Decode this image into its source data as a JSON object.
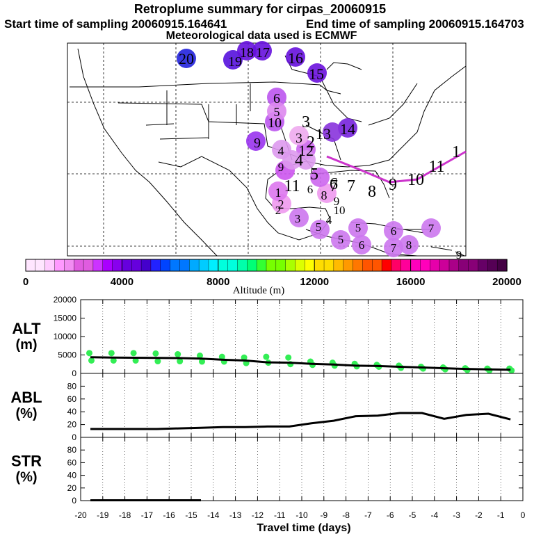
{
  "header": {
    "title": "Retroplume summary for cirpas_20060915",
    "start": "Start time of sampling 20060915.164641",
    "end": "End time of sampling 20060915.164703",
    "met": "Meteorological data used is ECMWF"
  },
  "colorbar": {
    "label": "Altitude (m)",
    "ticks": [
      "0",
      "4000",
      "8000",
      "12000",
      "16000",
      "20000"
    ]
  },
  "map_labels": [
    {
      "t": "20",
      "day": 20
    },
    {
      "t": "19",
      "day": 19
    },
    {
      "t": "18",
      "day": 18
    },
    {
      "t": "17",
      "day": 17
    },
    {
      "t": "16",
      "day": 16
    },
    {
      "t": "15",
      "day": 15
    },
    {
      "t": "14",
      "day": 14
    },
    {
      "t": "13",
      "day": 13
    },
    {
      "t": "12",
      "day": 12
    },
    {
      "t": "11",
      "day": 11
    },
    {
      "t": "10",
      "day": 10
    },
    {
      "t": "9",
      "day": 9
    },
    {
      "t": "8",
      "day": 8
    },
    {
      "t": "7",
      "day": 7
    },
    {
      "t": "6",
      "day": 6
    },
    {
      "t": "5",
      "day": 5
    },
    {
      "t": "4",
      "day": 4
    },
    {
      "t": "3",
      "day": 3
    },
    {
      "t": "2",
      "day": 2
    },
    {
      "t": "1",
      "day": 1
    }
  ],
  "chart_data": [
    {
      "type": "scatter",
      "panel": "ALT",
      "ylabel": [
        "ALT",
        "(m)"
      ],
      "ylim": [
        0,
        20000
      ],
      "yticks": [
        "0",
        "5000",
        "10000",
        "15000",
        "20000"
      ],
      "xlim": [
        -20,
        0
      ],
      "mean_line": {
        "x": [
          -20,
          -19,
          -18,
          -17,
          -16,
          -15,
          -14,
          -13,
          -12,
          -11,
          -10,
          -9,
          -8,
          -7,
          -6,
          -5,
          -4,
          -3,
          -2,
          -1
        ],
        "y": [
          4400,
          4300,
          4250,
          4200,
          4150,
          4000,
          3700,
          3500,
          3000,
          2900,
          2600,
          2400,
          2100,
          2000,
          1800,
          1600,
          1400,
          1200,
          1100,
          1000
        ]
      },
      "scatter": {
        "x": [
          -20,
          -20,
          -19,
          -19,
          -18,
          -18,
          -17,
          -17,
          -16,
          -16,
          -15,
          -15,
          -14,
          -14,
          -13,
          -13,
          -12,
          -12,
          -11,
          -11,
          -10,
          -10,
          -9,
          -9,
          -8,
          -8,
          -7,
          -7,
          -6,
          -6,
          -5,
          -5,
          -4,
          -4,
          -3,
          -3,
          -2,
          -2,
          -1,
          -1
        ],
        "y": [
          5500,
          3500,
          5500,
          3500,
          5500,
          3500,
          5400,
          3300,
          5200,
          3300,
          4800,
          3200,
          4500,
          3200,
          4300,
          2800,
          4500,
          2900,
          4300,
          2500,
          3200,
          2300,
          2900,
          2100,
          2600,
          1900,
          2300,
          1800,
          2100,
          1500,
          1800,
          1300,
          1600,
          1100,
          1400,
          900,
          1300,
          800,
          1300,
          800
        ]
      }
    },
    {
      "type": "line",
      "panel": "ABL",
      "ylabel": [
        "ABL",
        "(%)"
      ],
      "ylim": [
        0,
        100
      ],
      "yticks": [
        "0",
        "20",
        "40",
        "60",
        "80"
      ],
      "xlim": [
        -20,
        0
      ],
      "x": [
        -20,
        -19,
        -18,
        -17,
        -16,
        -15,
        -14,
        -13,
        -12,
        -11,
        -10,
        -9,
        -8,
        -7,
        -6,
        -5,
        -4,
        -3,
        -2,
        -1
      ],
      "y": [
        13,
        13,
        13,
        13,
        14,
        15,
        16,
        16,
        17,
        17,
        22,
        26,
        33,
        34,
        38,
        38,
        29,
        35,
        37,
        28
      ]
    },
    {
      "type": "line",
      "panel": "STR",
      "ylabel": [
        "STR",
        "(%)"
      ],
      "ylim": [
        0,
        100
      ],
      "yticks": [
        "0",
        "20",
        "40",
        "60",
        "80"
      ],
      "xlim": [
        -20,
        0
      ],
      "x": [
        -20,
        -15
      ],
      "y": [
        0.5,
        0.5
      ]
    }
  ],
  "xaxis": {
    "label": "Travel time (days)",
    "ticks": [
      "-20",
      "-19",
      "-18",
      "-17",
      "-16",
      "-15",
      "-14",
      "-13",
      "-12",
      "-11",
      "-10",
      "-9",
      "-8",
      "-7",
      "-6",
      "-5",
      "-4",
      "-3",
      "-2",
      "-1",
      "0"
    ]
  }
}
